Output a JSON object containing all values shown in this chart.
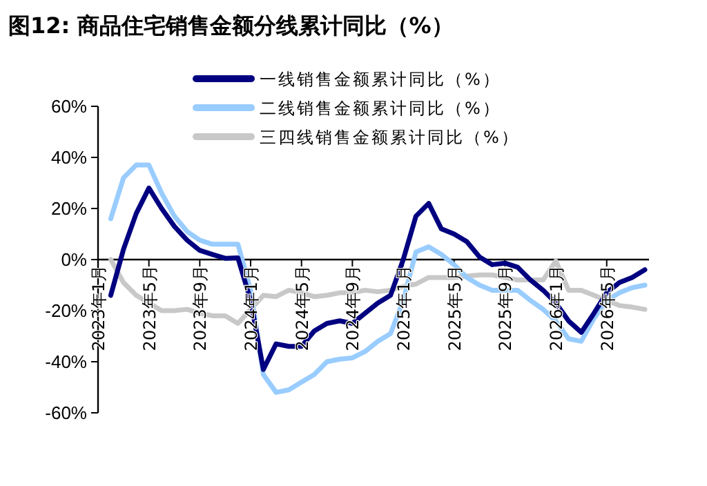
{
  "chart_data": {
    "type": "line",
    "title": "图12:  商品住宅销售金额分线累计同比（%）",
    "categories": [
      "2023年1月",
      null,
      null,
      null,
      "2023年5月",
      null,
      null,
      null,
      "2023年9月",
      null,
      null,
      null,
      "2024年1月",
      null,
      null,
      null,
      "2024年5月",
      null,
      null,
      null,
      "2024年9月",
      null,
      null,
      null,
      "2025年1月",
      null,
      null,
      null,
      "2025年5月",
      null,
      null,
      null,
      "2025年9月",
      null,
      null,
      null,
      "2026年1月",
      null,
      null,
      null,
      "2026年5月",
      null,
      null,
      null
    ],
    "series": [
      {
        "name": "一线销售金额累计同比（%）",
        "color": "#000080",
        "values": [
          null,
          -14,
          4,
          18,
          28,
          20,
          13,
          7.6,
          3.6,
          2,
          0.5,
          0.7,
          -16,
          -43,
          -33,
          -34,
          -34,
          -28,
          -25,
          -24,
          -25,
          -21,
          -17,
          -14,
          0,
          17,
          22,
          12,
          10,
          7,
          1,
          -2,
          -1.4,
          -3,
          -8,
          -12,
          -17,
          -24,
          -28.5,
          -21,
          -13,
          -9,
          -7,
          -4
        ]
      },
      {
        "name": "二线销售金额累计同比（%）",
        "color": "#99ccff",
        "values": [
          null,
          16,
          32,
          37,
          37,
          26,
          17,
          11,
          7.6,
          6,
          6,
          6,
          -12,
          -45,
          -52,
          -51,
          -48,
          -45,
          -40,
          -39,
          -38.5,
          -36,
          -32,
          -29,
          -16,
          3,
          5,
          2,
          -2,
          -7,
          -10,
          -12,
          -12,
          -12,
          -16,
          -19.5,
          -24,
          -31,
          -32,
          -23,
          -16,
          -13,
          -11,
          -10
        ]
      },
      {
        "name": "三四线销售金额累计同比（%）",
        "color": "#c8c8c8",
        "values": [
          null,
          0,
          -9,
          -14,
          -17,
          -20,
          -20,
          -19.5,
          -21,
          -22,
          -22,
          -25,
          -19.5,
          -14,
          -14.5,
          -12,
          -13,
          -14.5,
          -14,
          -13,
          -13,
          -12,
          -12.6,
          -12,
          -10.5,
          -9.6,
          -7,
          -7,
          -7,
          -6.5,
          -6,
          -6,
          -7,
          -8,
          -8,
          -8,
          -0.5,
          -12,
          -12,
          -14,
          -16,
          -18,
          -18.6,
          -19.5
        ]
      }
    ],
    "ylim": [
      -60,
      60
    ],
    "yticks": [
      {
        "value": -60,
        "label": "-60%"
      },
      {
        "value": -40,
        "label": "-40%"
      },
      {
        "value": -20,
        "label": "-20%"
      },
      {
        "value": 0,
        "label": "0%"
      },
      {
        "value": 20,
        "label": "20%"
      },
      {
        "value": 40,
        "label": "40%"
      },
      {
        "value": 60,
        "label": "60%"
      }
    ],
    "legend": "top",
    "grid": false
  }
}
